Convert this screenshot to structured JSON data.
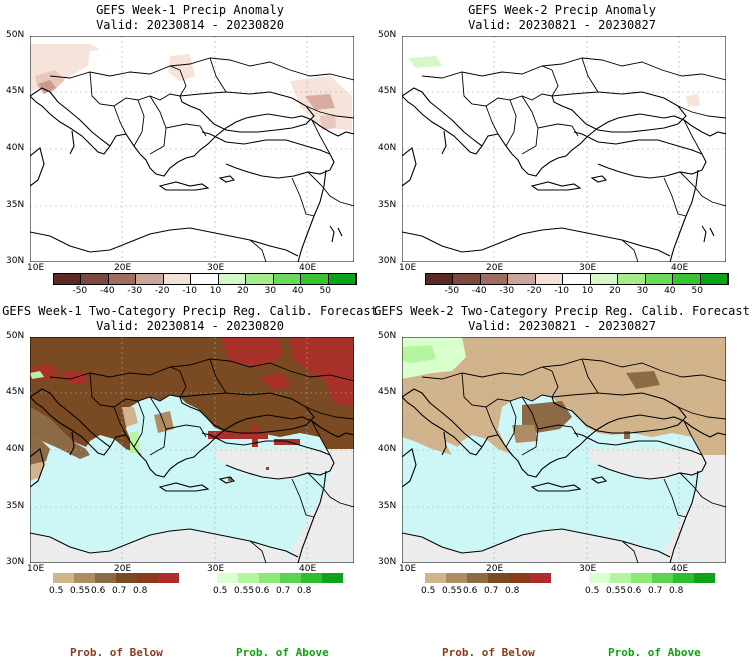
{
  "panels": [
    {
      "title": "GEFS Week-1 Precip Anomaly",
      "valid": "Valid: 20230814 - 20230820",
      "kind": "anom"
    },
    {
      "title": "GEFS Week-2 Precip Anomaly",
      "valid": "Valid: 20230821 - 20230827",
      "kind": "anom"
    },
    {
      "title": "GEFS Week-1 Two-Category Precip Reg. Calib. Forecast",
      "valid": "Valid: 20230814 - 20230820",
      "kind": "prob"
    },
    {
      "title": "GEFS Week-2 Two-Category Precip Reg. Calib. Forecast",
      "valid": "Valid: 20230821 - 20230827",
      "kind": "prob"
    }
  ],
  "axes": {
    "lat_labels": [
      "50N",
      "45N",
      "40N",
      "35N",
      "30N"
    ],
    "lon_labels": [
      "10E",
      "20E",
      "30E",
      "40E"
    ]
  },
  "anom_colorbar": {
    "labels": [
      "-50",
      "-40",
      "-30",
      "-20",
      "-10",
      "10",
      "20",
      "30",
      "40",
      "50"
    ],
    "colors": [
      "#5a2a22",
      "#7a4a3e",
      "#9e6e62",
      "#c9a59a",
      "#f3e0d7",
      "#ffffff",
      "#d6f7c8",
      "#a4ec8c",
      "#6bd95a",
      "#37c42f",
      "#0aa31a"
    ]
  },
  "prob_below_colorbar": {
    "labels": [
      "0.5",
      "0.55",
      "0.6",
      "0.7",
      "0.8"
    ],
    "colors": [
      "#d2b48c",
      "#b08c64",
      "#8c6a46",
      "#7a4a22",
      "#8b3a1a",
      "#b02c2c"
    ]
  },
  "prob_above_colorbar": {
    "labels": [
      "0.5",
      "0.55",
      "0.6",
      "0.7",
      "0.8"
    ],
    "colors": [
      "#d9ffcc",
      "#b4f5a0",
      "#8de878",
      "#5ad44e",
      "#2cbf2c",
      "#0aa31a"
    ]
  },
  "footer": {
    "below_label": "Prob. of Below",
    "above_label": "Prob. of Above",
    "below_color": "#8b3a1a",
    "above_color": "#11a011"
  }
}
